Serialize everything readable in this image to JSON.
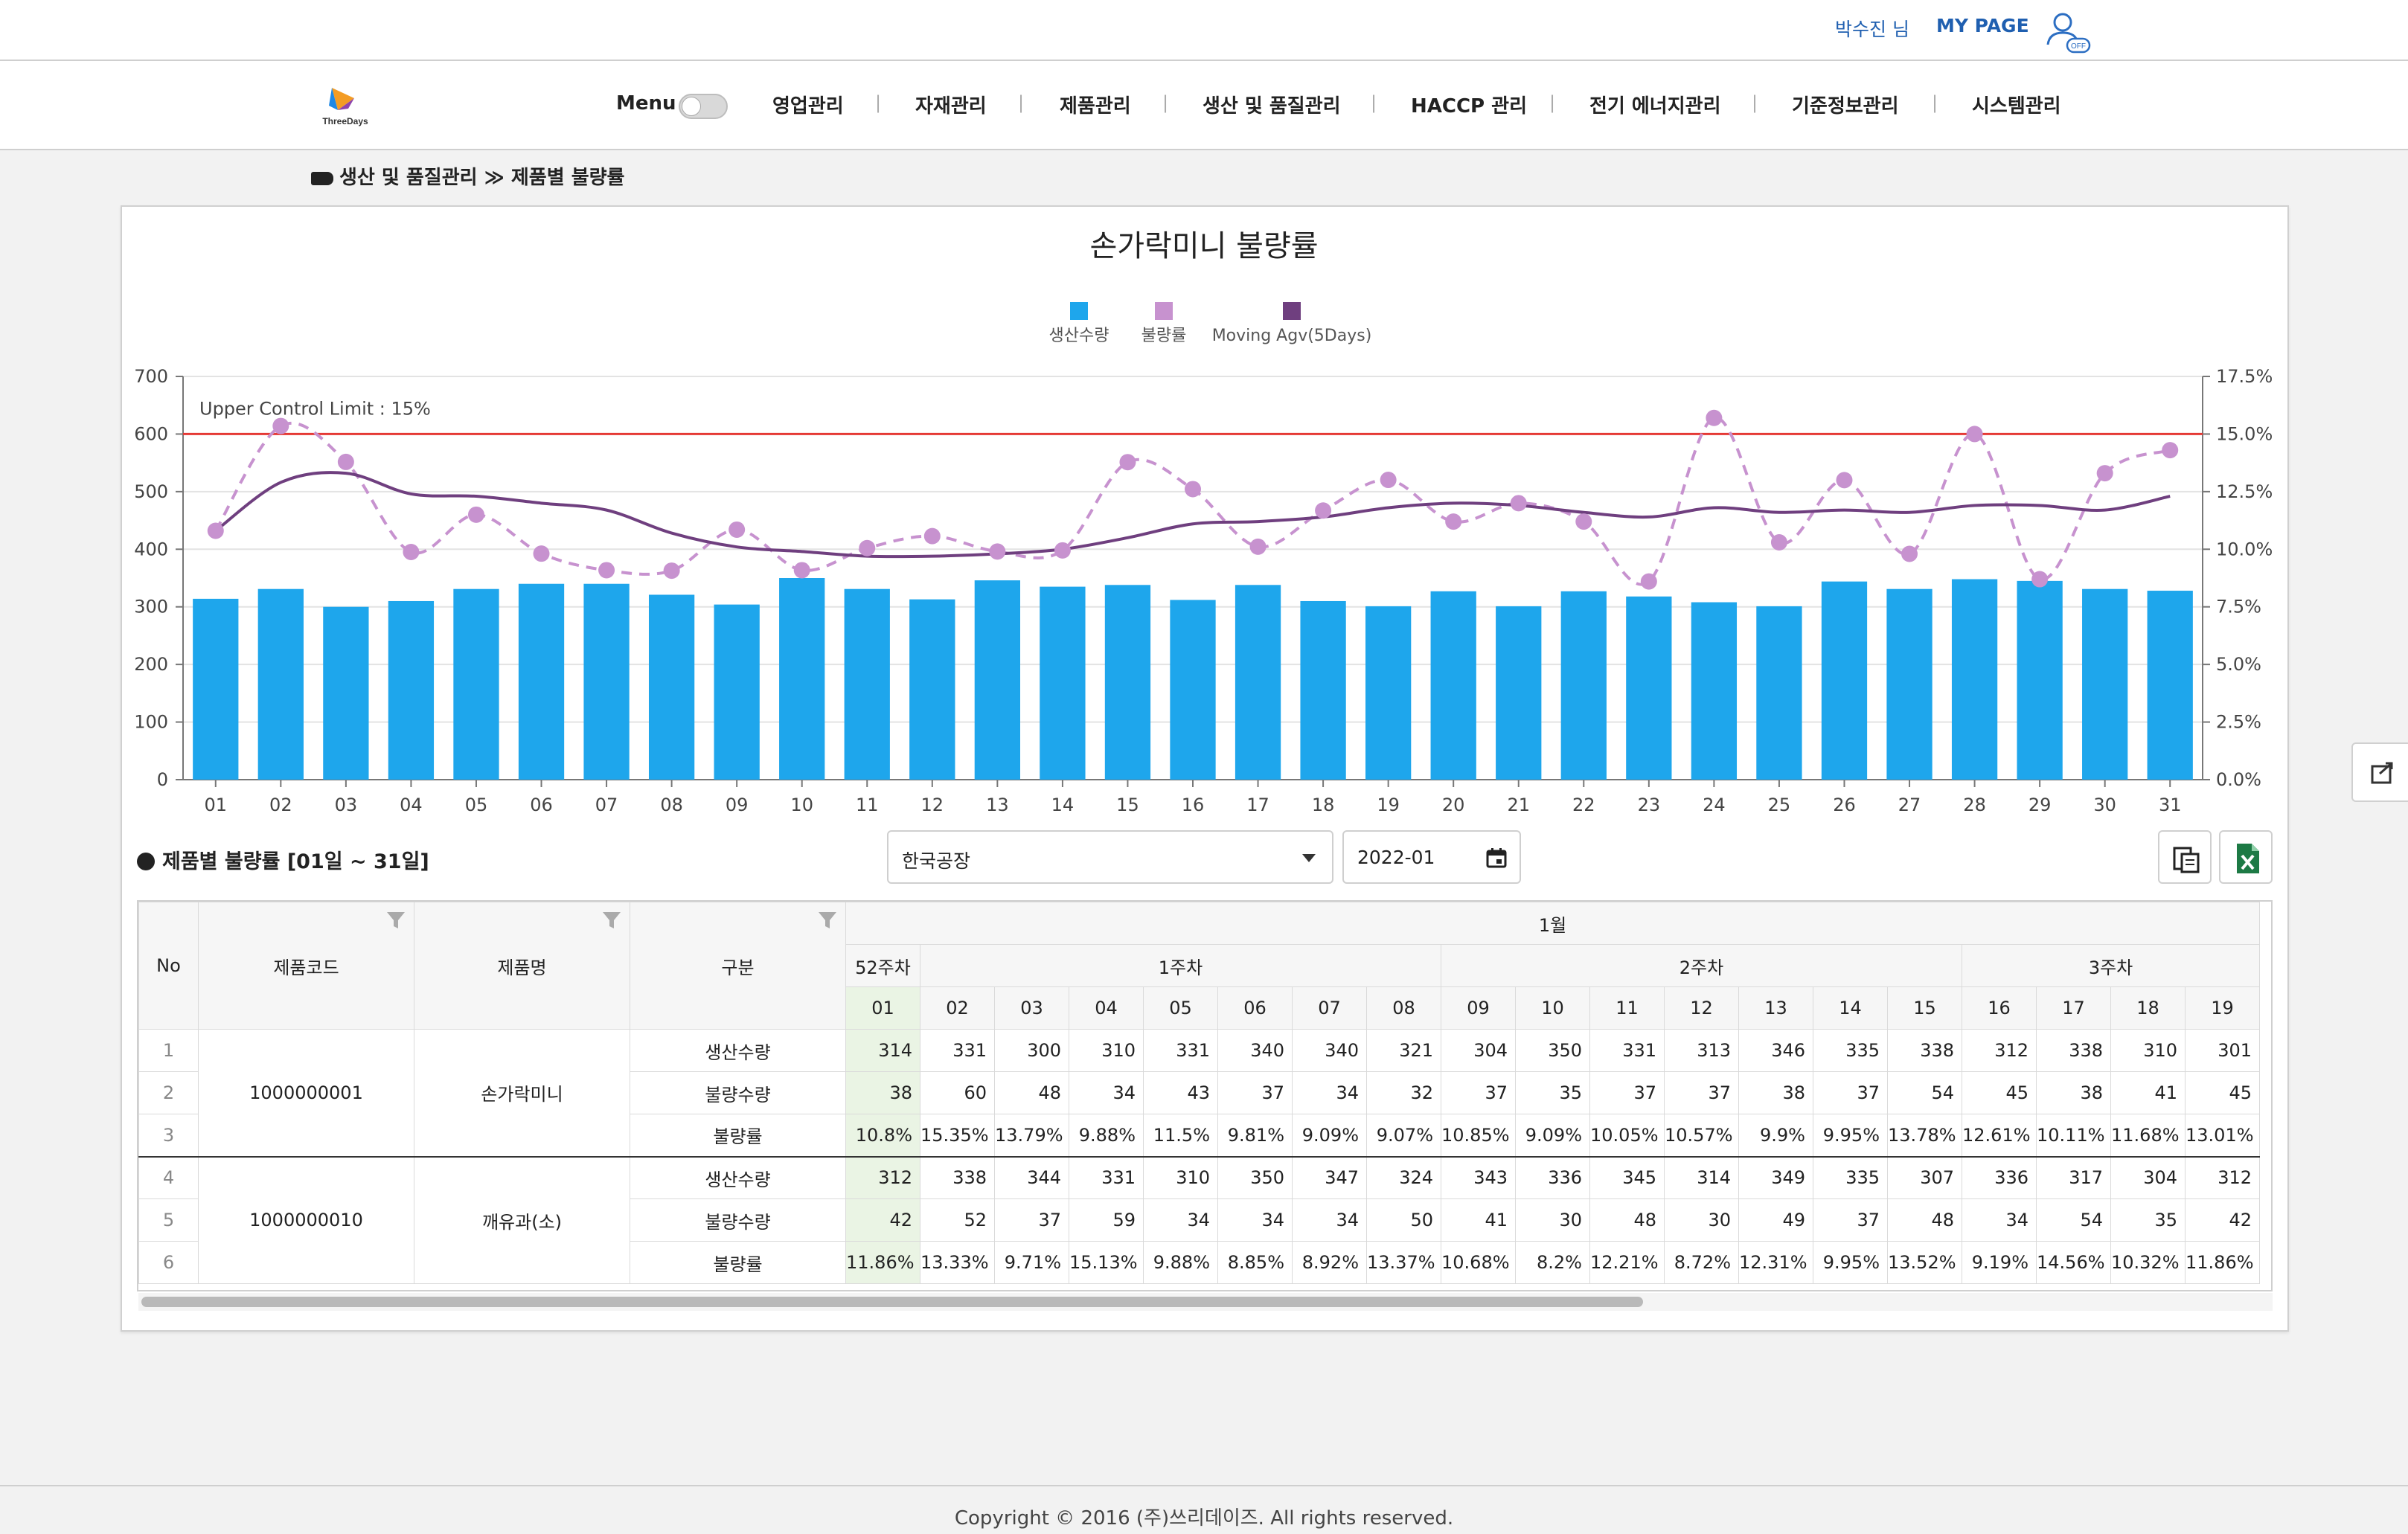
{
  "header": {
    "user_name": "박수진 님",
    "mypage": "MY PAGE",
    "user_icon_badge": "OFF"
  },
  "logo": {
    "text": "ThreeDays"
  },
  "menu": {
    "label": "Menu"
  },
  "nav": [
    "영업관리",
    "자재관리",
    "제품관리",
    "생산 및 품질관리",
    "HACCP 관리",
    "전기 에너지관리",
    "기준정보관리",
    "시스템관리"
  ],
  "breadcrumb": {
    "section": "생산 및 품질관리",
    "separator": "≫",
    "page": "제품별 불량률"
  },
  "chart_data": {
    "type": "bar",
    "title": "손가락미니 불량률",
    "legend": [
      {
        "name": "생산수량",
        "color": "#1ea6ec"
      },
      {
        "name": "불량률",
        "color": "#c792cf"
      },
      {
        "name": "Moving Agv(5Days)",
        "color": "#6f3f7f"
      }
    ],
    "categories": [
      "01",
      "02",
      "03",
      "04",
      "05",
      "06",
      "07",
      "08",
      "09",
      "10",
      "11",
      "12",
      "13",
      "14",
      "15",
      "16",
      "17",
      "18",
      "19",
      "20",
      "21",
      "22",
      "23",
      "24",
      "25",
      "26",
      "27",
      "28",
      "29",
      "30",
      "31"
    ],
    "series": [
      {
        "name": "생산수량",
        "type": "bar",
        "axis": "left",
        "values": [
          314,
          331,
          300,
          310,
          331,
          340,
          340,
          321,
          304,
          350,
          331,
          313,
          346,
          335,
          338,
          312,
          338,
          310,
          301,
          327,
          301,
          327,
          318,
          308,
          301,
          344,
          331,
          348,
          345,
          331,
          328
        ]
      },
      {
        "name": "불량률",
        "type": "line-dashed-markers",
        "axis": "right",
        "values": [
          10.8,
          15.35,
          13.79,
          9.88,
          11.5,
          9.81,
          9.09,
          9.07,
          10.85,
          9.09,
          10.05,
          10.57,
          9.9,
          9.95,
          13.78,
          12.61,
          10.11,
          11.68,
          13.01,
          11.2,
          12.0,
          11.2,
          8.6,
          15.7,
          10.3,
          13.0,
          9.8,
          15.0,
          8.7,
          13.3,
          14.3
        ]
      },
      {
        "name": "Moving Agv(5Days)",
        "type": "line",
        "axis": "right",
        "values": [
          10.8,
          12.9,
          13.3,
          12.4,
          12.3,
          12.0,
          11.7,
          10.7,
          10.1,
          9.9,
          9.7,
          9.7,
          9.8,
          10.0,
          10.5,
          11.1,
          11.2,
          11.4,
          11.8,
          12.0,
          11.9,
          11.6,
          11.4,
          11.8,
          11.6,
          11.7,
          11.6,
          11.9,
          11.9,
          11.7,
          12.3
        ]
      }
    ],
    "y_left": {
      "min": 0,
      "max": 700,
      "ticks": [
        "0",
        "100",
        "200",
        "300",
        "400",
        "500",
        "600",
        "700"
      ]
    },
    "y_right": {
      "min": 0,
      "max": 17.5,
      "ticks": [
        "0.0%",
        "2.5%",
        "5.0%",
        "7.5%",
        "10.0%",
        "12.5%",
        "15.0%",
        "17.5%"
      ]
    },
    "ucl": {
      "label": "Upper Control Limit : 15%",
      "value": 15,
      "color": "#e53935"
    },
    "grid": true,
    "legend_position": "top-center"
  },
  "section": {
    "title": "제품별 불량률 [01일 ~ 31일]"
  },
  "filters": {
    "factory": "한국공장",
    "month": "2022-01"
  },
  "table": {
    "headers": {
      "no": "No",
      "code": "제품코드",
      "name": "제품명",
      "type": "구분"
    },
    "month": "1월",
    "weeks": [
      "52주차",
      "1주차",
      "2주차",
      "3주차"
    ],
    "days": [
      "01",
      "02",
      "03",
      "04",
      "05",
      "06",
      "07",
      "08",
      "09",
      "10",
      "11",
      "12",
      "13",
      "14",
      "15",
      "16",
      "17",
      "18",
      "19"
    ],
    "products": [
      {
        "code": "1000000001",
        "name": "손가락미니",
        "rows": [
          {
            "no": "1",
            "type": "생산수량",
            "values": [
              "314",
              "331",
              "300",
              "310",
              "331",
              "340",
              "340",
              "321",
              "304",
              "350",
              "331",
              "313",
              "346",
              "335",
              "338",
              "312",
              "338",
              "310",
              "301"
            ]
          },
          {
            "no": "2",
            "type": "불량수량",
            "values": [
              "38",
              "60",
              "48",
              "34",
              "43",
              "37",
              "34",
              "32",
              "37",
              "35",
              "37",
              "37",
              "38",
              "37",
              "54",
              "45",
              "38",
              "41",
              "45"
            ]
          },
          {
            "no": "3",
            "type": "불량률",
            "values": [
              "10.8%",
              "15.35%",
              "13.79%",
              "9.88%",
              "11.5%",
              "9.81%",
              "9.09%",
              "9.07%",
              "10.85%",
              "9.09%",
              "10.05%",
              "10.57%",
              "9.9%",
              "9.95%",
              "13.78%",
              "12.61%",
              "10.11%",
              "11.68%",
              "13.01%"
            ]
          }
        ]
      },
      {
        "code": "1000000010",
        "name": "깨유과(소)",
        "rows": [
          {
            "no": "4",
            "type": "생산수량",
            "values": [
              "312",
              "338",
              "344",
              "331",
              "310",
              "350",
              "347",
              "324",
              "343",
              "336",
              "345",
              "314",
              "349",
              "335",
              "307",
              "336",
              "317",
              "304",
              "312"
            ]
          },
          {
            "no": "5",
            "type": "불량수량",
            "values": [
              "42",
              "52",
              "37",
              "59",
              "34",
              "34",
              "34",
              "50",
              "41",
              "30",
              "48",
              "30",
              "49",
              "37",
              "48",
              "34",
              "54",
              "35",
              "42"
            ]
          },
          {
            "no": "6",
            "type": "불량률",
            "values": [
              "11.86%",
              "13.33%",
              "9.71%",
              "15.13%",
              "9.88%",
              "8.85%",
              "8.92%",
              "13.37%",
              "10.68%",
              "8.2%",
              "12.21%",
              "8.72%",
              "12.31%",
              "9.95%",
              "13.52%",
              "9.19%",
              "14.56%",
              "10.32%",
              "11.86%"
            ]
          }
        ]
      }
    ]
  },
  "footer": {
    "copyright": "Copyright © 2016 (주)쓰리데이즈. All rights reserved."
  }
}
